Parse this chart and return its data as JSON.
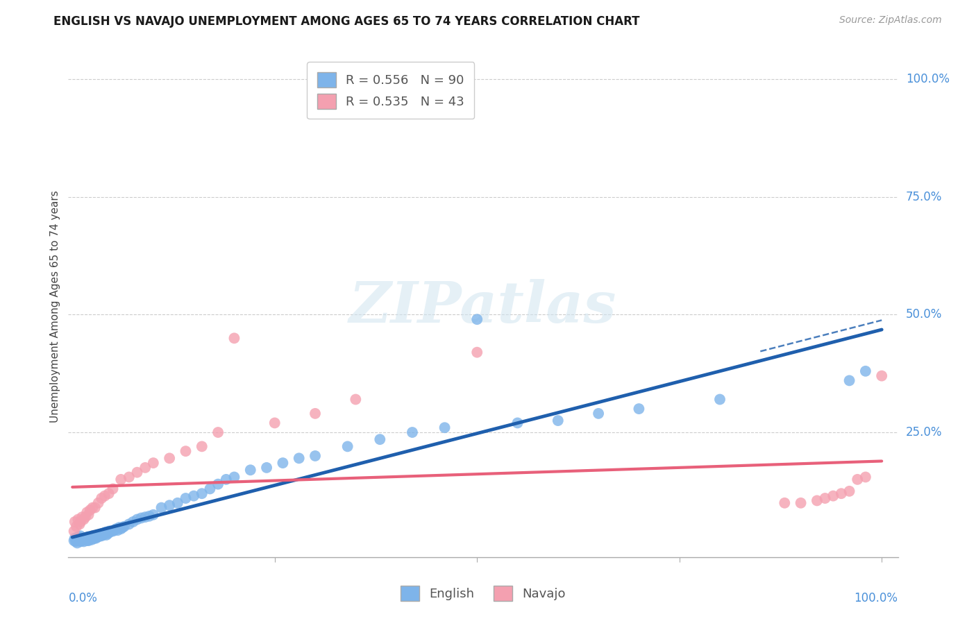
{
  "title": "ENGLISH VS NAVAJO UNEMPLOYMENT AMONG AGES 65 TO 74 YEARS CORRELATION CHART",
  "source": "Source: ZipAtlas.com",
  "ylabel": "Unemployment Among Ages 65 to 74 years",
  "english_R": 0.556,
  "english_N": 90,
  "navajo_R": 0.535,
  "navajo_N": 43,
  "english_color": "#7EB4EA",
  "navajo_color": "#F4A0B0",
  "english_line_color": "#1F5FAD",
  "navajo_line_color": "#E8607A",
  "english_x": [
    0.002,
    0.003,
    0.004,
    0.005,
    0.006,
    0.007,
    0.008,
    0.009,
    0.01,
    0.01,
    0.01,
    0.011,
    0.012,
    0.013,
    0.014,
    0.015,
    0.016,
    0.017,
    0.018,
    0.019,
    0.02,
    0.02,
    0.021,
    0.022,
    0.023,
    0.024,
    0.025,
    0.026,
    0.027,
    0.028,
    0.029,
    0.03,
    0.031,
    0.032,
    0.033,
    0.034,
    0.035,
    0.036,
    0.037,
    0.038,
    0.04,
    0.041,
    0.042,
    0.043,
    0.044,
    0.045,
    0.046,
    0.047,
    0.05,
    0.052,
    0.054,
    0.056,
    0.058,
    0.06,
    0.062,
    0.064,
    0.07,
    0.075,
    0.08,
    0.085,
    0.09,
    0.095,
    0.1,
    0.11,
    0.12,
    0.13,
    0.14,
    0.15,
    0.16,
    0.17,
    0.18,
    0.19,
    0.2,
    0.22,
    0.24,
    0.26,
    0.28,
    0.3,
    0.34,
    0.38,
    0.42,
    0.46,
    0.5,
    0.55,
    0.6,
    0.65,
    0.7,
    0.8,
    0.96,
    0.98
  ],
  "english_y": [
    0.02,
    0.025,
    0.018,
    0.022,
    0.015,
    0.028,
    0.02,
    0.024,
    0.018,
    0.025,
    0.03,
    0.022,
    0.02,
    0.025,
    0.018,
    0.025,
    0.022,
    0.025,
    0.02,
    0.028,
    0.02,
    0.025,
    0.022,
    0.025,
    0.028,
    0.022,
    0.03,
    0.025,
    0.025,
    0.03,
    0.025,
    0.028,
    0.03,
    0.028,
    0.032,
    0.03,
    0.032,
    0.03,
    0.035,
    0.032,
    0.035,
    0.038,
    0.032,
    0.038,
    0.035,
    0.04,
    0.038,
    0.04,
    0.04,
    0.042,
    0.045,
    0.042,
    0.048,
    0.045,
    0.048,
    0.05,
    0.055,
    0.06,
    0.065,
    0.068,
    0.07,
    0.072,
    0.075,
    0.09,
    0.095,
    0.1,
    0.11,
    0.115,
    0.12,
    0.13,
    0.14,
    0.15,
    0.155,
    0.17,
    0.175,
    0.185,
    0.195,
    0.2,
    0.22,
    0.235,
    0.25,
    0.26,
    0.49,
    0.27,
    0.275,
    0.29,
    0.3,
    0.32,
    0.36,
    0.38
  ],
  "navajo_x": [
    0.002,
    0.003,
    0.005,
    0.007,
    0.009,
    0.01,
    0.012,
    0.014,
    0.016,
    0.018,
    0.02,
    0.022,
    0.025,
    0.028,
    0.032,
    0.036,
    0.04,
    0.045,
    0.05,
    0.06,
    0.07,
    0.08,
    0.09,
    0.1,
    0.12,
    0.14,
    0.16,
    0.18,
    0.2,
    0.25,
    0.3,
    0.35,
    0.5,
    0.88,
    0.9,
    0.92,
    0.93,
    0.94,
    0.95,
    0.96,
    0.97,
    0.98,
    1.0
  ],
  "navajo_y": [
    0.04,
    0.06,
    0.05,
    0.065,
    0.055,
    0.06,
    0.07,
    0.065,
    0.07,
    0.08,
    0.075,
    0.085,
    0.09,
    0.09,
    0.1,
    0.11,
    0.115,
    0.12,
    0.13,
    0.15,
    0.155,
    0.165,
    0.175,
    0.185,
    0.195,
    0.21,
    0.22,
    0.25,
    0.45,
    0.27,
    0.29,
    0.32,
    0.42,
    0.1,
    0.1,
    0.105,
    0.11,
    0.115,
    0.12,
    0.125,
    0.15,
    0.155,
    0.37
  ],
  "xlim": [
    0.0,
    1.0
  ],
  "ylim": [
    0.0,
    1.0
  ],
  "ytick_values": [
    0.0,
    0.25,
    0.5,
    0.75,
    1.0
  ],
  "ytick_labels": [
    "0.0%",
    "25.0%",
    "50.0%",
    "75.0%",
    "100.0%"
  ],
  "right_ytick_values": [
    0.25,
    0.5,
    0.75,
    1.0
  ],
  "right_ytick_labels": [
    "25.0%",
    "50.0%",
    "75.0%",
    "100.0%"
  ]
}
